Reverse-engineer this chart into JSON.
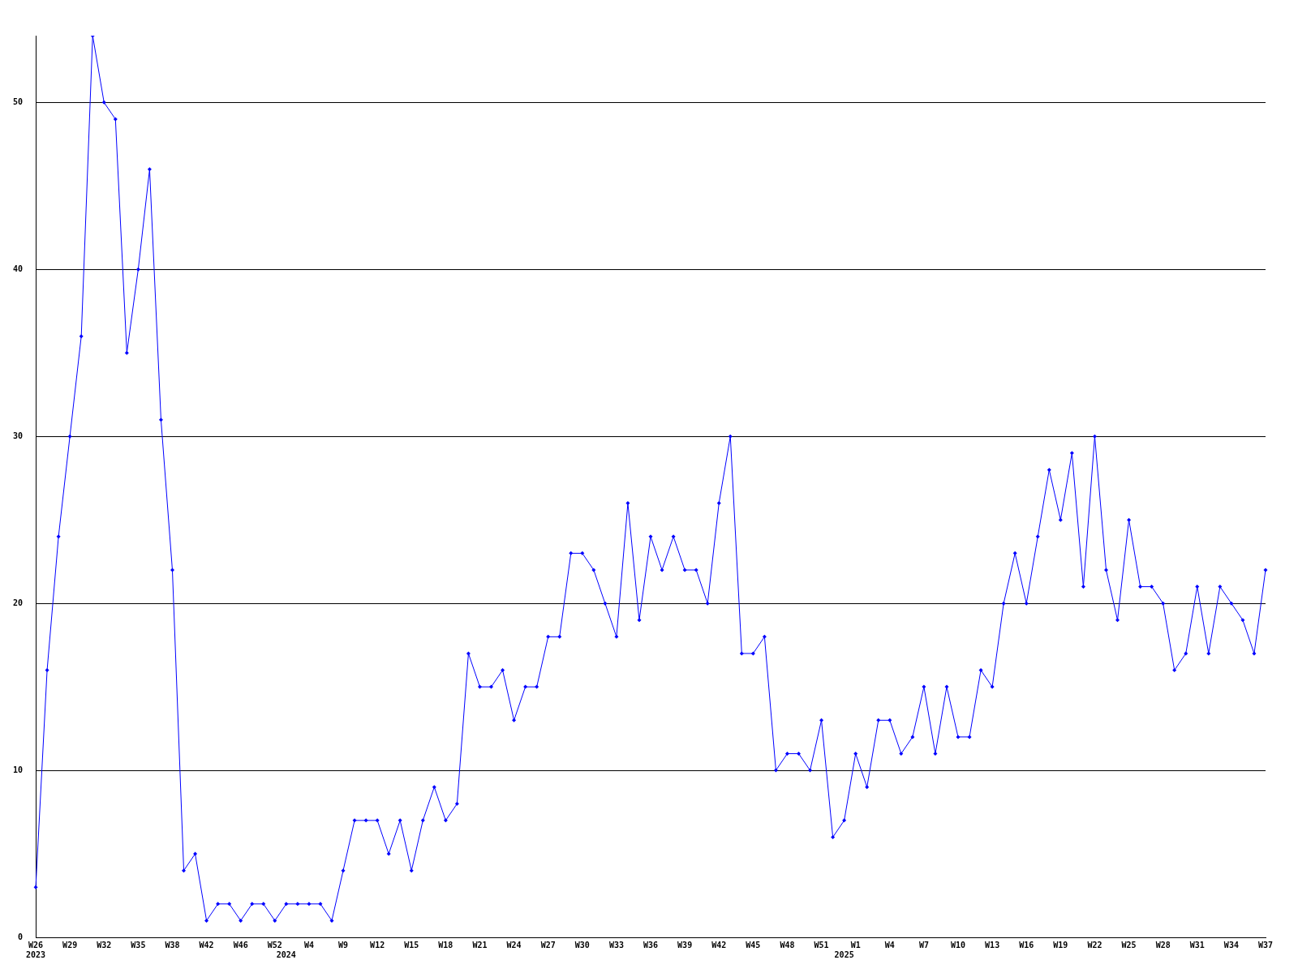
{
  "chart_data": {
    "type": "line",
    "categories": [
      "W26\n2023",
      null,
      null,
      "W29",
      null,
      null,
      "W32",
      null,
      null,
      "W35",
      null,
      null,
      "W38",
      null,
      null,
      "W42",
      null,
      null,
      "W46",
      null,
      null,
      "W52",
      "\n2024",
      null,
      "W4",
      null,
      null,
      "W9",
      null,
      null,
      "W12",
      null,
      null,
      "W15",
      null,
      null,
      "W18",
      null,
      null,
      "W21",
      null,
      null,
      "W24",
      null,
      null,
      "W27",
      null,
      null,
      "W30",
      null,
      null,
      "W33",
      null,
      null,
      "W36",
      null,
      null,
      "W39",
      null,
      null,
      "W42",
      null,
      null,
      "W45",
      null,
      null,
      "W48",
      null,
      null,
      "W51",
      null,
      "\n2025",
      "W1",
      null,
      null,
      "W4",
      null,
      null,
      "W7",
      null,
      null,
      "W10",
      null,
      null,
      "W13",
      null,
      null,
      "W16",
      null,
      null,
      "W19",
      null,
      null,
      "W22",
      null,
      null,
      "W25",
      null,
      null,
      "W28",
      null,
      null,
      "W31",
      null,
      null,
      "W34",
      null,
      null,
      "W37"
    ],
    "series": [
      {
        "color": "#0000ff",
        "values": [
          3,
          16,
          24,
          30,
          36,
          54,
          50,
          49,
          35,
          40,
          46,
          31,
          22,
          4,
          5,
          1,
          2,
          2,
          1,
          2,
          2,
          1,
          2,
          2,
          2,
          2,
          1,
          4,
          7,
          7,
          7,
          5,
          7,
          4,
          7,
          9,
          7,
          8,
          17,
          15,
          15,
          16,
          13,
          15,
          15,
          18,
          18,
          23,
          23,
          22,
          20,
          18,
          26,
          19,
          24,
          22,
          24,
          22,
          22,
          20,
          26,
          30,
          17,
          17,
          18,
          10,
          11,
          11,
          10,
          13,
          6,
          7,
          11,
          9,
          13,
          13,
          11,
          12,
          15,
          11,
          15,
          12,
          12,
          16,
          15,
          20,
          23,
          20,
          24,
          28,
          25,
          29,
          21,
          30,
          22,
          19,
          25,
          21,
          21,
          20,
          16,
          17,
          21,
          17,
          21,
          20,
          19,
          17,
          22
        ]
      }
    ],
    "ylim": [
      0,
      54
    ],
    "yticks": [
      0,
      10,
      20,
      30,
      40,
      50
    ],
    "grid": "y",
    "legend": false,
    "marker": "diamond",
    "line_style": "solid"
  }
}
